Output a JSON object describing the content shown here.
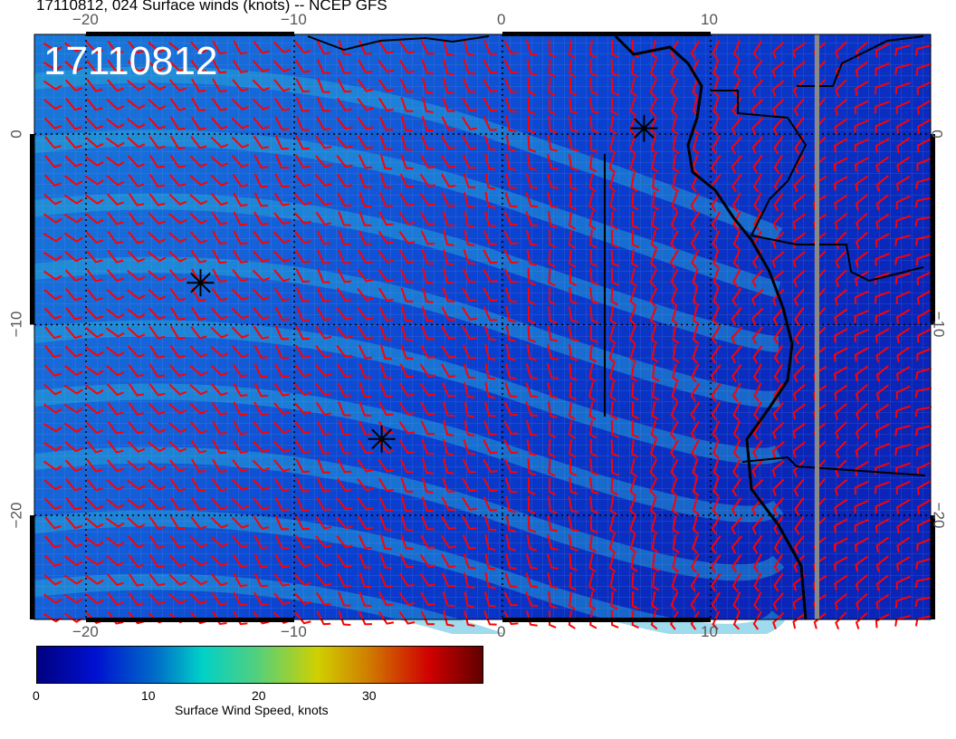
{
  "title": "17110812, 024 Surface winds (knots) -- NCEP GFS",
  "overlay_label": "17110812",
  "map": {
    "lon_ticks": [
      "−20",
      "−10",
      "0",
      "10"
    ],
    "lat_ticks": [
      "0",
      "−10",
      "−20"
    ],
    "markers": [
      {
        "lon": -14.5,
        "lat": -7.8
      },
      {
        "lon": -5.8,
        "lat": -16
      },
      {
        "lon": 6.8,
        "lat": 0.3
      }
    ],
    "barb_color": "#ff0000",
    "coast_color": "#000000"
  },
  "colorbar": {
    "ticks": [
      "0",
      "10",
      "20",
      "30"
    ],
    "label": "Surface Wind Speed, knots",
    "range": [
      0,
      37
    ],
    "colors": [
      "#00007f",
      "#0010d0",
      "#0070c8",
      "#00d0c8",
      "#50d080",
      "#d0d000",
      "#d08000",
      "#d00000",
      "#600000"
    ]
  }
}
